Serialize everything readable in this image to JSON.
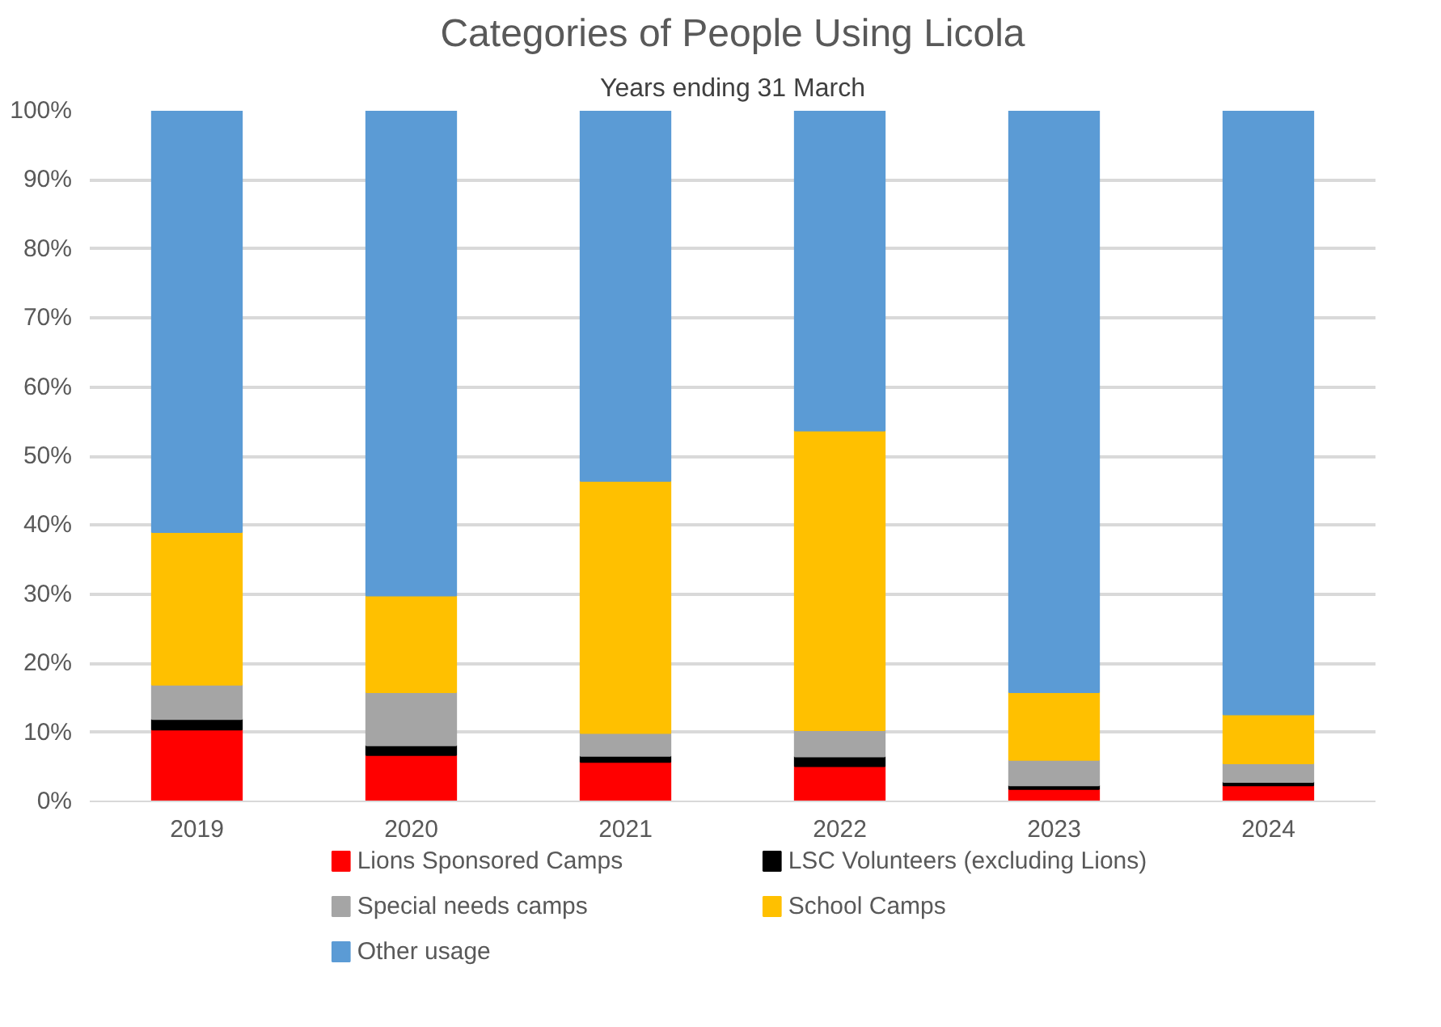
{
  "chart_data": {
    "type": "bar",
    "title": "Categories of People Using Licola",
    "subtitle": "Years ending 31 March",
    "categories": [
      "2019",
      "2020",
      "2021",
      "2022",
      "2023",
      "2024"
    ],
    "stacked": true,
    "series": [
      {
        "name": "Lions Sponsored Camps",
        "color": "#ff0000",
        "values": [
          10.4,
          6.7,
          5.7,
          5.1,
          1.8,
          2.3
        ]
      },
      {
        "name": "LSC Volunteers (excluding Lions)",
        "color": "#000000",
        "values": [
          1.5,
          1.4,
          0.9,
          1.4,
          0.5,
          0.5
        ]
      },
      {
        "name": "Special needs camps",
        "color": "#a5a5a5",
        "values": [
          5.0,
          7.7,
          3.3,
          3.8,
          3.7,
          2.7
        ]
      },
      {
        "name": "School Camps",
        "color": "#ffc000",
        "values": [
          22.1,
          14.0,
          36.5,
          43.4,
          9.8,
          7.1
        ]
      },
      {
        "name": "Other usage",
        "color": "#5b9bd5",
        "values": [
          61.0,
          70.2,
          53.7,
          46.3,
          84.2,
          87.4
        ]
      }
    ],
    "ylim": [
      0,
      100
    ],
    "yticks": [
      {
        "value": 0,
        "label": "0%"
      },
      {
        "value": 10,
        "label": "10%"
      },
      {
        "value": 20,
        "label": "20%"
      },
      {
        "value": 30,
        "label": "30%"
      },
      {
        "value": 40,
        "label": "40%"
      },
      {
        "value": 50,
        "label": "50%"
      },
      {
        "value": 60,
        "label": "60%"
      },
      {
        "value": 70,
        "label": "70%"
      },
      {
        "value": 80,
        "label": "80%"
      },
      {
        "value": 90,
        "label": "90%"
      },
      {
        "value": 100,
        "label": "100%"
      }
    ],
    "grid": "y",
    "legend": "bottom"
  }
}
